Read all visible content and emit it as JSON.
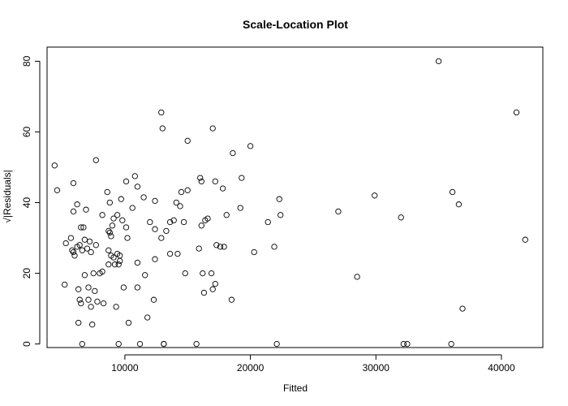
{
  "chart_data": {
    "type": "scatter",
    "title": "Scale-Location Plot",
    "xlabel": "Fitted",
    "ylabel": "√|Residuals|",
    "xlim": [
      3800,
      43300
    ],
    "ylim": [
      -1,
      84
    ],
    "xticks": [
      10000,
      20000,
      30000,
      40000
    ],
    "xtick_labels": [
      "10000",
      "20000",
      "30000",
      "40000"
    ],
    "yticks": [
      0,
      20,
      40,
      60,
      80
    ],
    "ytick_labels": [
      "0",
      "20",
      "40",
      "60",
      "80"
    ],
    "grid": false,
    "legend": "none",
    "marker": "open-circle",
    "points": [
      [
        4400,
        50.5
      ],
      [
        4600,
        43.5
      ],
      [
        5200,
        16.8
      ],
      [
        5300,
        28.5
      ],
      [
        5700,
        30
      ],
      [
        5800,
        26.5
      ],
      [
        5900,
        45.5
      ],
      [
        5900,
        26
      ],
      [
        5900,
        37.5
      ],
      [
        6000,
        25
      ],
      [
        6200,
        27.5
      ],
      [
        6200,
        39.5
      ],
      [
        6300,
        6
      ],
      [
        6300,
        15.5
      ],
      [
        6400,
        28
      ],
      [
        6400,
        12.5
      ],
      [
        6500,
        11.5
      ],
      [
        6500,
        33
      ],
      [
        6600,
        0
      ],
      [
        6600,
        26.5
      ],
      [
        6700,
        33
      ],
      [
        6800,
        29.5
      ],
      [
        6800,
        19.5
      ],
      [
        6900,
        38
      ],
      [
        7000,
        27
      ],
      [
        7100,
        12.5
      ],
      [
        7100,
        16
      ],
      [
        7200,
        29
      ],
      [
        7300,
        26
      ],
      [
        7300,
        10.5
      ],
      [
        7400,
        5.5
      ],
      [
        7500,
        20
      ],
      [
        7600,
        15
      ],
      [
        7700,
        28
      ],
      [
        7700,
        52
      ],
      [
        7800,
        12
      ],
      [
        8000,
        20
      ],
      [
        8200,
        36.5
      ],
      [
        8200,
        20.5
      ],
      [
        8300,
        11.5
      ],
      [
        8600,
        43
      ],
      [
        8700,
        32
      ],
      [
        8700,
        26.5
      ],
      [
        8700,
        22.5
      ],
      [
        8800,
        40
      ],
      [
        8800,
        31.5
      ],
      [
        8900,
        30.5
      ],
      [
        8900,
        25
      ],
      [
        9000,
        33.5
      ],
      [
        9100,
        35.5
      ],
      [
        9100,
        24.5
      ],
      [
        9200,
        22.5
      ],
      [
        9300,
        10.5
      ],
      [
        9400,
        36.5
      ],
      [
        9400,
        25.5
      ],
      [
        9500,
        0
      ],
      [
        9500,
        22.5
      ],
      [
        9600,
        23.5
      ],
      [
        9600,
        25
      ],
      [
        9700,
        41
      ],
      [
        9800,
        35
      ],
      [
        9900,
        16
      ],
      [
        10100,
        33
      ],
      [
        10100,
        46
      ],
      [
        10200,
        30
      ],
      [
        10300,
        6
      ],
      [
        10600,
        38.5
      ],
      [
        10800,
        47.5
      ],
      [
        11000,
        23
      ],
      [
        11000,
        16
      ],
      [
        11000,
        44.5
      ],
      [
        11200,
        0
      ],
      [
        11500,
        41.5
      ],
      [
        11600,
        19.5
      ],
      [
        11800,
        7.5
      ],
      [
        12000,
        34.5
      ],
      [
        12300,
        12.5
      ],
      [
        12400,
        24
      ],
      [
        12400,
        32.5
      ],
      [
        12400,
        40.5
      ],
      [
        12900,
        30
      ],
      [
        12900,
        65.5
      ],
      [
        13000,
        61
      ],
      [
        13100,
        0
      ],
      [
        13100,
        0
      ],
      [
        13300,
        32
      ],
      [
        13600,
        25.5
      ],
      [
        13600,
        34.5
      ],
      [
        13900,
        35
      ],
      [
        14100,
        40
      ],
      [
        14200,
        25.5
      ],
      [
        14400,
        39
      ],
      [
        14500,
        43
      ],
      [
        14700,
        34.5
      ],
      [
        14800,
        20
      ],
      [
        15000,
        57.5
      ],
      [
        15000,
        43.5
      ],
      [
        15700,
        0
      ],
      [
        15900,
        27
      ],
      [
        16000,
        47
      ],
      [
        16100,
        46
      ],
      [
        16100,
        33.5
      ],
      [
        16200,
        20
      ],
      [
        16300,
        14.5
      ],
      [
        16400,
        35
      ],
      [
        16600,
        35.5
      ],
      [
        16900,
        20
      ],
      [
        17000,
        15.5
      ],
      [
        17000,
        61
      ],
      [
        17200,
        46
      ],
      [
        17200,
        17
      ],
      [
        17300,
        28
      ],
      [
        17600,
        27.5
      ],
      [
        17800,
        44
      ],
      [
        17900,
        27.5
      ],
      [
        18100,
        36.5
      ],
      [
        18500,
        12.5
      ],
      [
        18600,
        54
      ],
      [
        19200,
        38.5
      ],
      [
        19300,
        47
      ],
      [
        20000,
        56
      ],
      [
        20300,
        26
      ],
      [
        21400,
        34.5
      ],
      [
        21900,
        27.5
      ],
      [
        22100,
        0
      ],
      [
        22300,
        41
      ],
      [
        22400,
        36.5
      ],
      [
        27000,
        37.5
      ],
      [
        28500,
        19
      ],
      [
        29900,
        42
      ],
      [
        32000,
        35.8
      ],
      [
        32200,
        0
      ],
      [
        32500,
        0
      ],
      [
        35000,
        80
      ],
      [
        36000,
        0
      ],
      [
        36100,
        43
      ],
      [
        36600,
        39.5
      ],
      [
        36900,
        10
      ],
      [
        41200,
        65.5
      ],
      [
        41900,
        29.5
      ]
    ]
  }
}
